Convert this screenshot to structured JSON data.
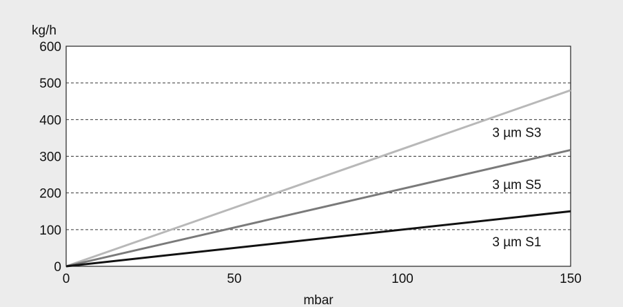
{
  "chart_data": {
    "type": "line",
    "title": "",
    "xlabel": "mbar",
    "ylabel": "kg/h",
    "xlim": [
      0,
      150
    ],
    "ylim": [
      0,
      600
    ],
    "xticks": [
      0,
      50,
      100,
      150
    ],
    "yticks": [
      0,
      100,
      200,
      300,
      400,
      500,
      600
    ],
    "grid": "horizontal-dashed",
    "series": [
      {
        "name": "3 µm S3",
        "x": [
          0,
          150
        ],
        "y": [
          0,
          480
        ],
        "color": "#b8b8b8"
      },
      {
        "name": "3 µm S5",
        "x": [
          0,
          150
        ],
        "y": [
          0,
          317
        ],
        "color": "#7a7a7a"
      },
      {
        "name": "3 µm S1",
        "x": [
          0,
          150
        ],
        "y": [
          0,
          150
        ],
        "color": "#111111"
      }
    ],
    "annotations": [
      {
        "text": "3 µm S3",
        "x": 134,
        "y": 366
      },
      {
        "text": "3 µm S5",
        "x": 134,
        "y": 224
      },
      {
        "text": "3 µm S1",
        "x": 134,
        "y": 68
      }
    ]
  }
}
